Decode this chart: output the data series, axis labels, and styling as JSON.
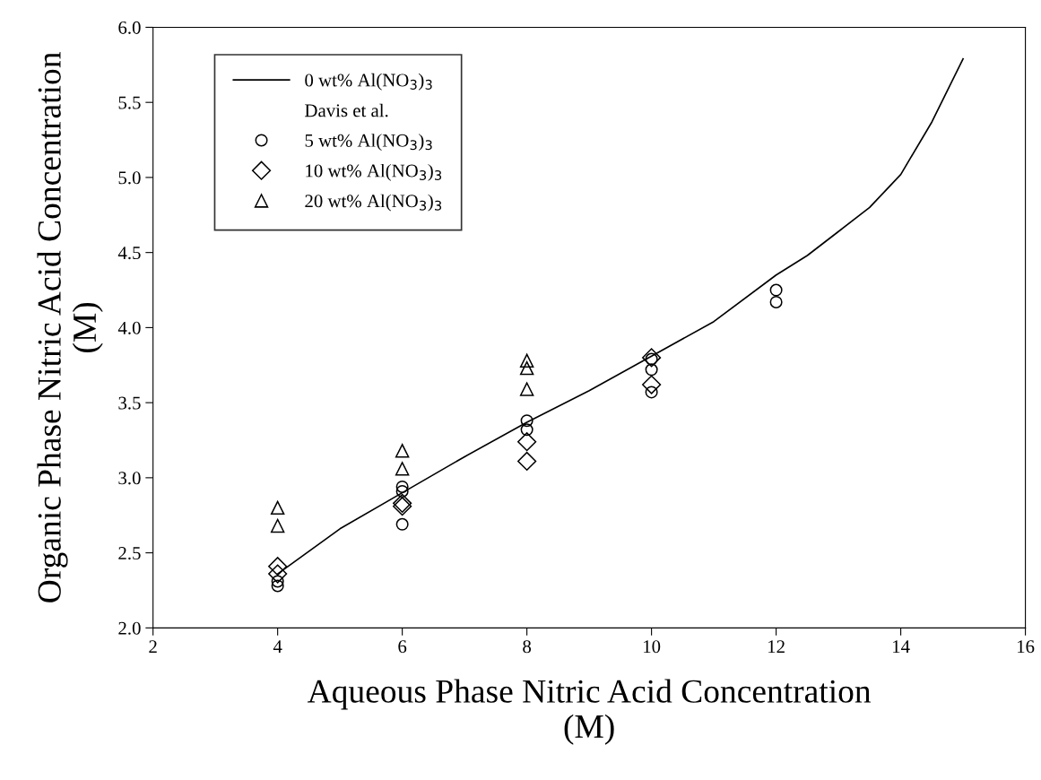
{
  "chart_data": {
    "type": "scatter",
    "xlabel": "Aqueous Phase Nitric Acid Concentration\n(M)",
    "ylabel": "Organic Phase Nitric Acid Concentration\n(M)",
    "xlim": [
      2,
      16
    ],
    "xticks": [
      2,
      4,
      6,
      8,
      10,
      12,
      14,
      16
    ],
    "ylim": [
      2.0,
      6.0
    ],
    "yticks": [
      {
        "value": 2.0,
        "label": "2.0"
      },
      {
        "value": 2.5,
        "label": "2.5"
      },
      {
        "value": 3.0,
        "label": "3.0"
      },
      {
        "value": 3.5,
        "label": "3.5"
      },
      {
        "value": 4.0,
        "label": "4.0"
      },
      {
        "value": 4.5,
        "label": "4.5"
      },
      {
        "value": 5.0,
        "label": "5.0"
      },
      {
        "value": 5.5,
        "label": "5.5"
      },
      {
        "value": 6.0,
        "label": "6.0"
      }
    ],
    "grid": false,
    "legend": "top left",
    "legend_title": "Davis et al.",
    "series": [
      {
        "name": "0 wt% Al(NO$_{3}$)$_{3}$",
        "type": "line",
        "color": "#000000",
        "marker": "none",
        "line_style": "solid",
        "x": [
          4,
          5,
          6,
          7,
          8,
          9,
          10,
          11,
          12,
          12.5,
          13,
          13.5,
          14,
          14.5,
          15
        ],
        "values": [
          2.36,
          2.66,
          2.9,
          3.14,
          3.37,
          3.58,
          3.81,
          4.04,
          4.35,
          4.48,
          4.64,
          4.8,
          5.02,
          5.37,
          5.79
        ]
      },
      {
        "name": "5 wt% Al(NO$_{3}$)$_{3}$",
        "color": "#000000",
        "marker": "circle",
        "x": [
          4,
          4,
          6,
          6,
          6,
          8,
          8,
          10,
          10,
          10,
          12,
          12
        ],
        "values": [
          2.28,
          2.31,
          2.94,
          2.91,
          2.69,
          3.38,
          3.32,
          3.79,
          3.72,
          3.57,
          4.25,
          4.17
        ]
      },
      {
        "name": "10 wt% Al(NO$_{3}$)$_{3}$",
        "color": "#000000",
        "marker": "diamond",
        "x": [
          4,
          4,
          6,
          6,
          8,
          8,
          10,
          10
        ],
        "values": [
          2.41,
          2.36,
          2.83,
          2.81,
          3.24,
          3.11,
          3.8,
          3.62
        ]
      },
      {
        "name": "20 wt% Al(NO$_{3}$)$_{3}$",
        "color": "#000000",
        "marker": "triangle",
        "x": [
          4,
          4,
          6,
          6,
          8,
          8,
          8
        ],
        "values": [
          2.8,
          2.68,
          3.18,
          3.06,
          3.78,
          3.73,
          3.59
        ]
      }
    ]
  }
}
